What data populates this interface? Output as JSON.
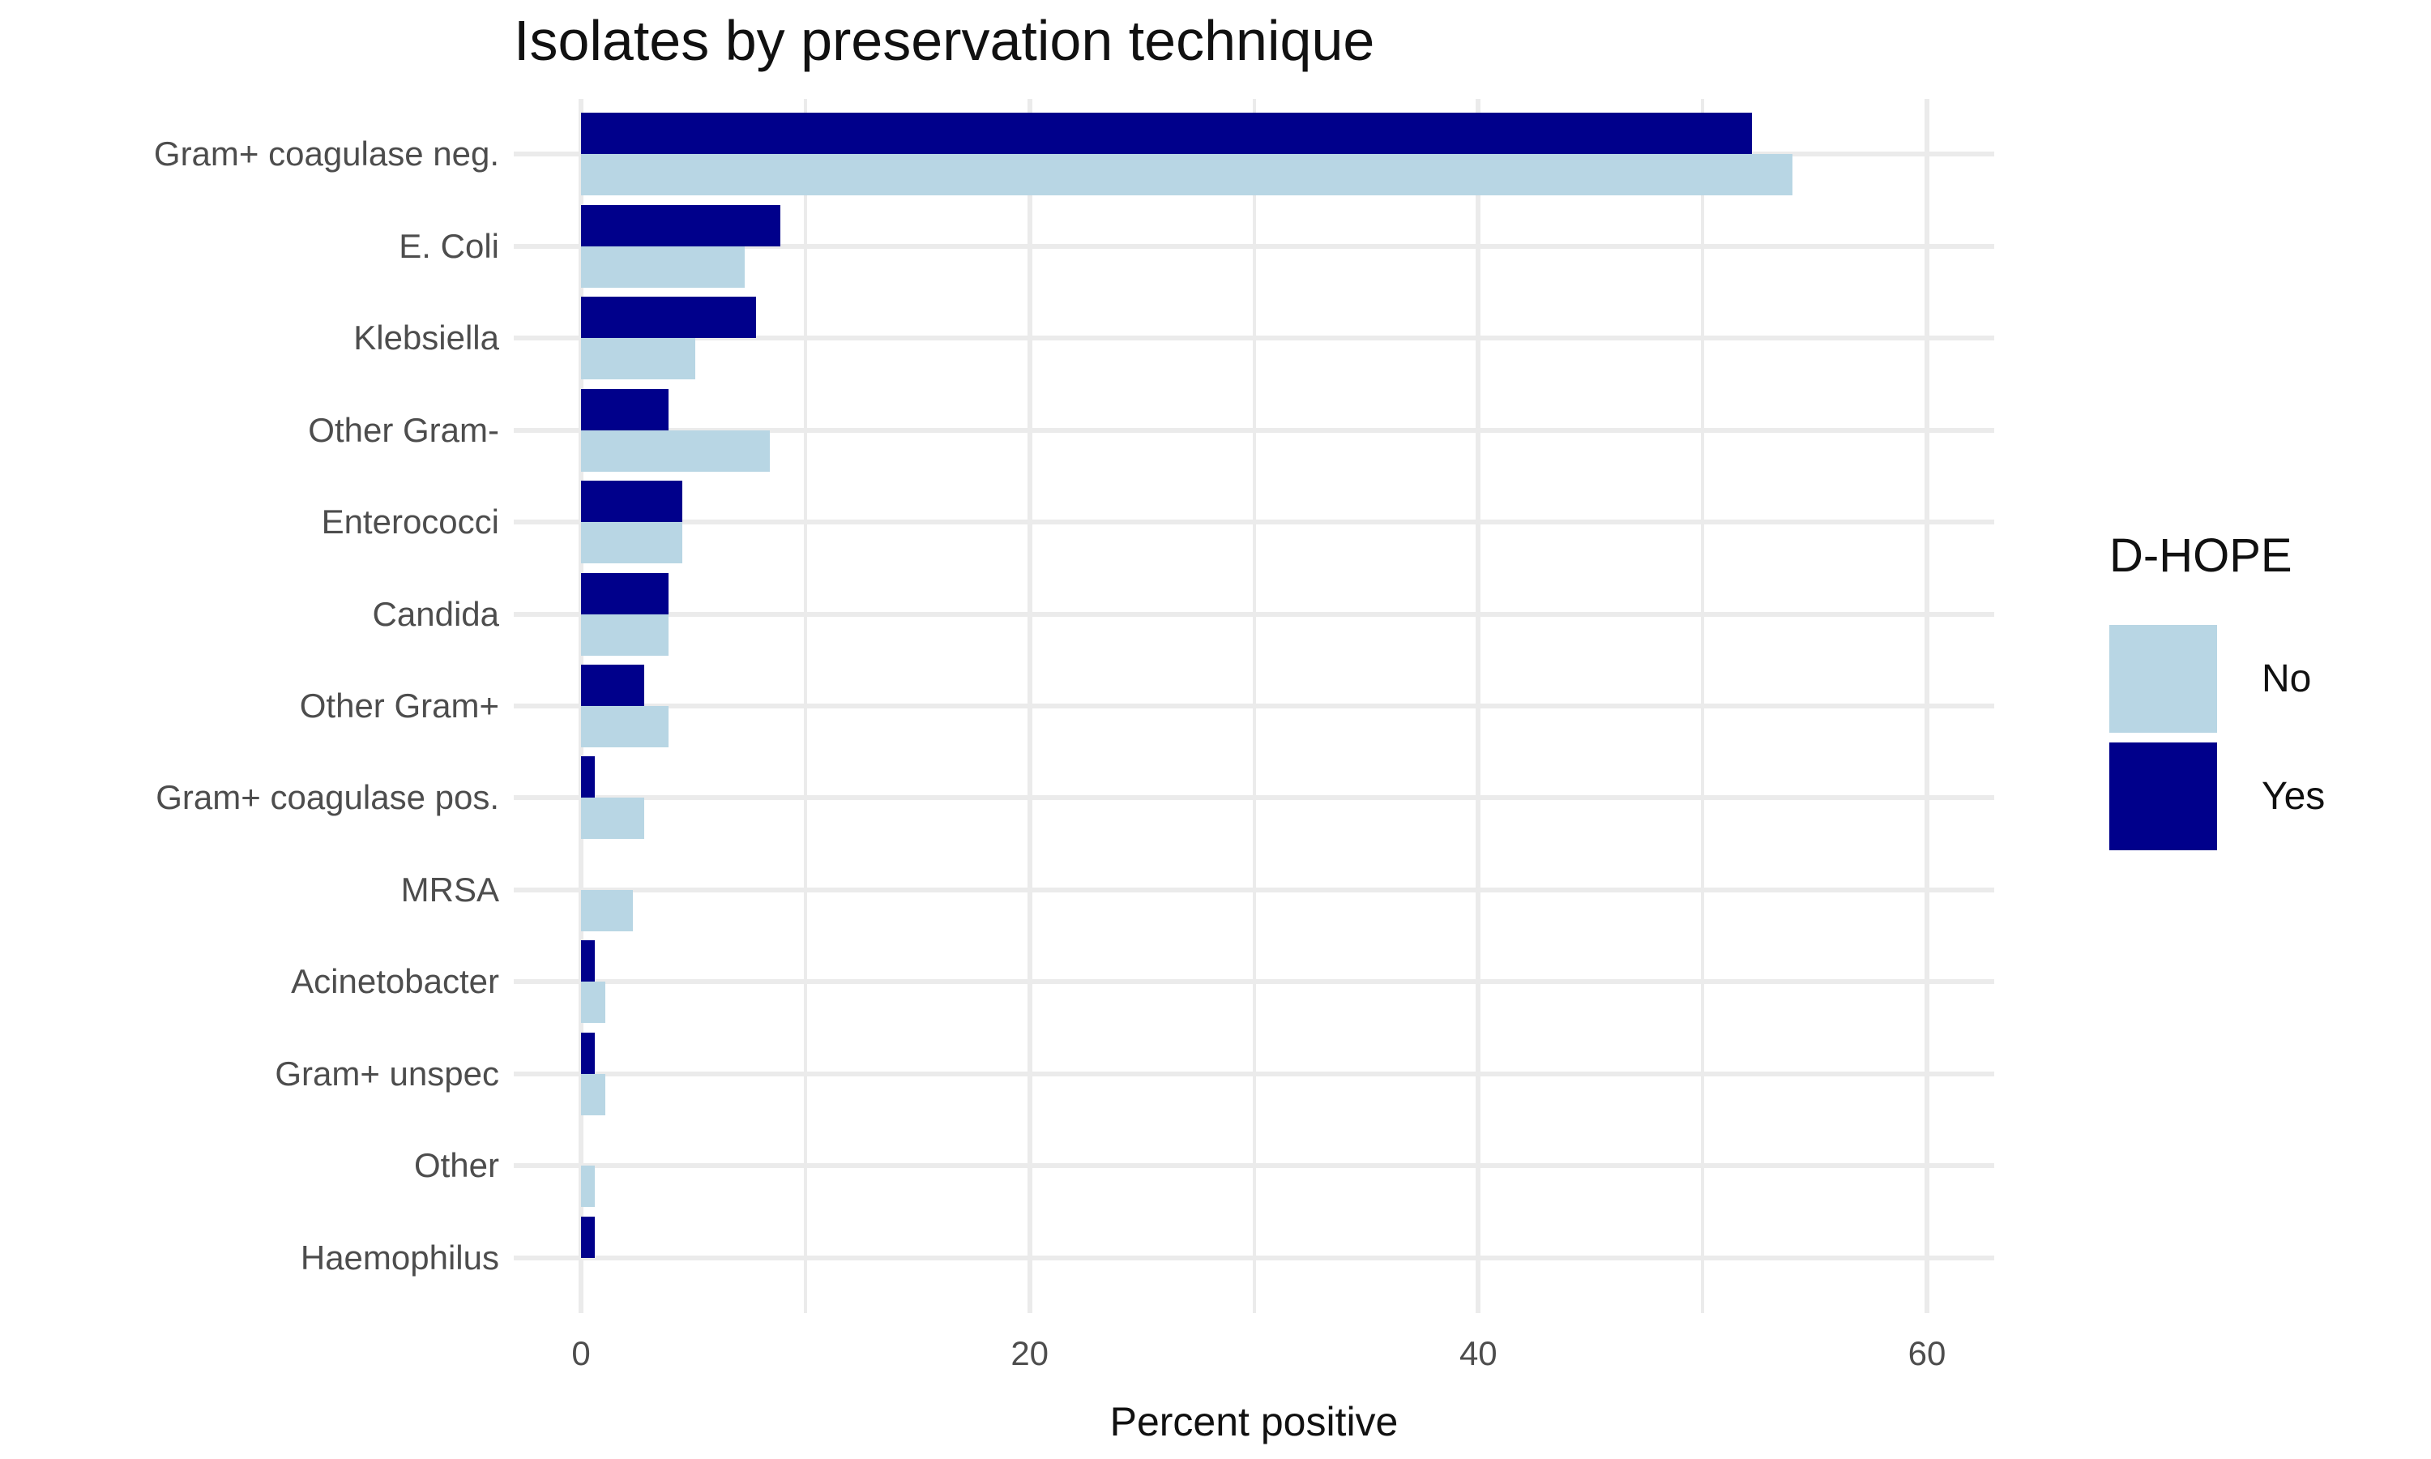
{
  "title": "Isolates by preservation technique",
  "x_axis": {
    "label": "Percent positive",
    "ticks": [
      "0",
      "20",
      "40",
      "60"
    ],
    "tick_values": [
      0,
      20,
      40,
      60
    ]
  },
  "y_axis": {
    "label": ""
  },
  "legend": {
    "title": "D-HOPE",
    "items": [
      {
        "label": "No",
        "color": "#B8D6E4"
      },
      {
        "label": "Yes",
        "color": "#00008B"
      }
    ]
  },
  "chart_data": {
    "type": "bar",
    "orientation": "horizontal",
    "title": "Isolates by preservation technique",
    "xlabel": "Percent positive",
    "ylabel": "",
    "xlim": [
      0,
      63
    ],
    "x_ticks": [
      0,
      20,
      40,
      60
    ],
    "x_minor_gridlines": [
      10,
      30,
      50
    ],
    "grid": "on",
    "legend_position": "right",
    "legend_title": "D-HOPE",
    "categories": [
      "Gram+ coagulase neg.",
      "E. Coli",
      "Klebsiella",
      "Other Gram-",
      "Enterococci",
      "Candida",
      "Other Gram+",
      "Gram+ coagulase pos.",
      "MRSA",
      "Acinetobacter",
      "Gram+ unspec",
      "Other",
      "Haemophilus"
    ],
    "series": [
      {
        "name": "No",
        "color": "#B8D6E4",
        "values": [
          54.0,
          7.3,
          5.1,
          8.4,
          4.5,
          3.9,
          3.9,
          2.8,
          2.3,
          1.1,
          1.1,
          0.6,
          0
        ]
      },
      {
        "name": "Yes",
        "color": "#00008B",
        "values": [
          52.2,
          8.9,
          7.8,
          3.9,
          4.5,
          3.9,
          2.8,
          0.6,
          0,
          0.6,
          0.6,
          0,
          0.6
        ]
      }
    ]
  }
}
